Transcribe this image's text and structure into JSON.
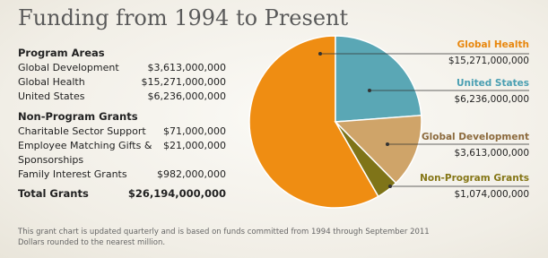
{
  "chart_data": {
    "type": "pie",
    "title": "Funding from 1994 to Present",
    "categories": [
      "Global Health",
      "United States",
      "Global Development",
      "Non-Program Grants"
    ],
    "values": [
      15271000000,
      6236000000,
      3613000000,
      1074000000
    ],
    "value_labels": [
      "$15,271,000,000",
      "$6,236,000,000",
      "$3,613,000,000",
      "$1,074,000,000"
    ],
    "colors": [
      "#ef8d12",
      "#5aa7b5",
      "#cfa469",
      "#7f7418"
    ],
    "label_colors": [
      "#e8870e",
      "#4a9fb2",
      "#8c6a3d",
      "#857616"
    ]
  },
  "table": {
    "sections": [
      {
        "heading": "Program Areas",
        "rows": [
          [
            "Global Development",
            "$3,613,000,000"
          ],
          [
            "Global Health",
            "$15,271,000,000"
          ],
          [
            "United States",
            "$6,236,000,000"
          ]
        ]
      },
      {
        "heading": "Non-Program Grants",
        "rows": [
          [
            "Charitable Sector Support",
            "$71,000,000"
          ],
          [
            "Employee Matching Gifts & Sponsorships",
            "$21,000,000"
          ],
          [
            "Family Interest Grants",
            "$982,000,000"
          ]
        ]
      }
    ],
    "total": [
      "Total Grants",
      "$26,194,000,000"
    ]
  },
  "footnote": [
    "This grant chart is updated quarterly and is based on funds committed from 1994 through September 2011",
    "Dollars rounded to the nearest million."
  ]
}
